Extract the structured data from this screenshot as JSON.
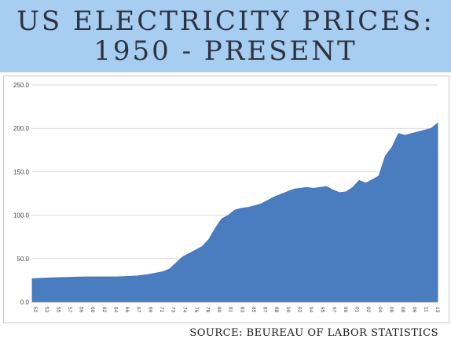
{
  "header": {
    "title_line1": "US Electricity Prices:",
    "title_line2": "1950 - Present"
  },
  "source": "Source: Beureau of Labor Statistics",
  "colors": {
    "banner": "#a7cdf1",
    "area": "#4a7dc0",
    "grid": "#d9d9d9"
  },
  "chart_data": {
    "type": "area",
    "title": "US Electricity Prices: 1950 - Present",
    "xlabel": "",
    "ylabel": "",
    "ylim": [
      0,
      250
    ],
    "y_ticks": [
      "0.0",
      "50.0",
      "100.0",
      "150.0",
      "200.0",
      "250.0"
    ],
    "x_tick_labels": [
      "52",
      "53",
      "55",
      "57",
      "59",
      "60",
      "62",
      "64",
      "66",
      "67",
      "69",
      "71",
      "73",
      "74",
      "76",
      "78",
      "80",
      "81",
      "83",
      "85",
      "87",
      "88",
      "90",
      "92",
      "94",
      "95",
      "97",
      "99",
      "01",
      "02",
      "04",
      "06",
      "08",
      "09",
      "11",
      "13"
    ],
    "grid": true,
    "legend": "none",
    "x": [
      1952,
      1955,
      1960,
      1965,
      1968,
      1970,
      1972,
      1973,
      1974,
      1975,
      1976,
      1977,
      1978,
      1979,
      1980,
      1981,
      1982,
      1983,
      1984,
      1985,
      1986,
      1987,
      1988,
      1989,
      1990,
      1991,
      1992,
      1993,
      1994,
      1995,
      1996,
      1997,
      1998,
      1999,
      2000,
      2001,
      2002,
      2003,
      2004,
      2005,
      2006,
      2007,
      2008,
      2009,
      2010,
      2011,
      2012,
      2013,
      2014
    ],
    "values": [
      27,
      28,
      29,
      29,
      30,
      32,
      35,
      38,
      45,
      52,
      56,
      60,
      64,
      72,
      85,
      96,
      100,
      106,
      108,
      109,
      111,
      113,
      117,
      121,
      124,
      127,
      130,
      131,
      132,
      131,
      132,
      133,
      129,
      126,
      127,
      132,
      140,
      137,
      141,
      145,
      168,
      178,
      194,
      192,
      194,
      196,
      198,
      200,
      206
    ]
  }
}
